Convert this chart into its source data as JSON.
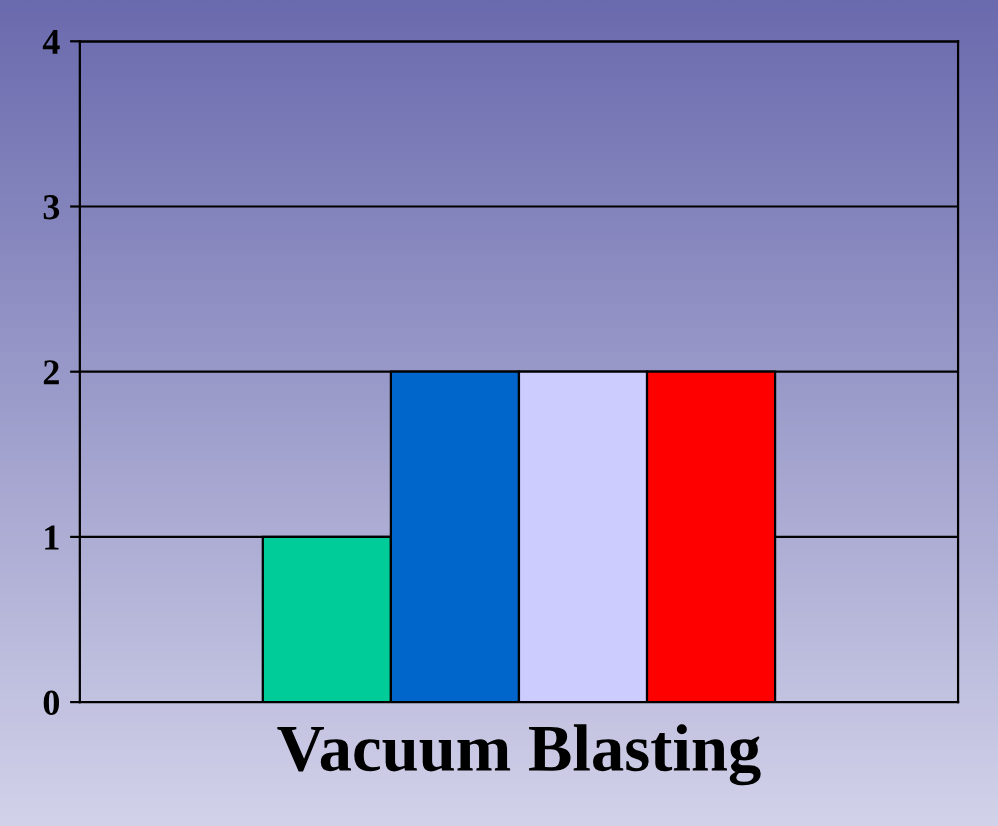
{
  "chart_data": {
    "type": "bar",
    "categories": [
      "Vacuum Blasting"
    ],
    "series": [
      {
        "color": "#00cc99",
        "values": [
          1
        ]
      },
      {
        "color": "#0066cc",
        "values": [
          2
        ]
      },
      {
        "color": "#ccccff",
        "values": [
          2
        ]
      },
      {
        "color": "#ff0000",
        "values": [
          2
        ]
      }
    ],
    "ylim": [
      0,
      4
    ],
    "yticks": [
      0,
      1,
      2,
      3,
      4
    ],
    "grid": "y",
    "legend": false
  }
}
